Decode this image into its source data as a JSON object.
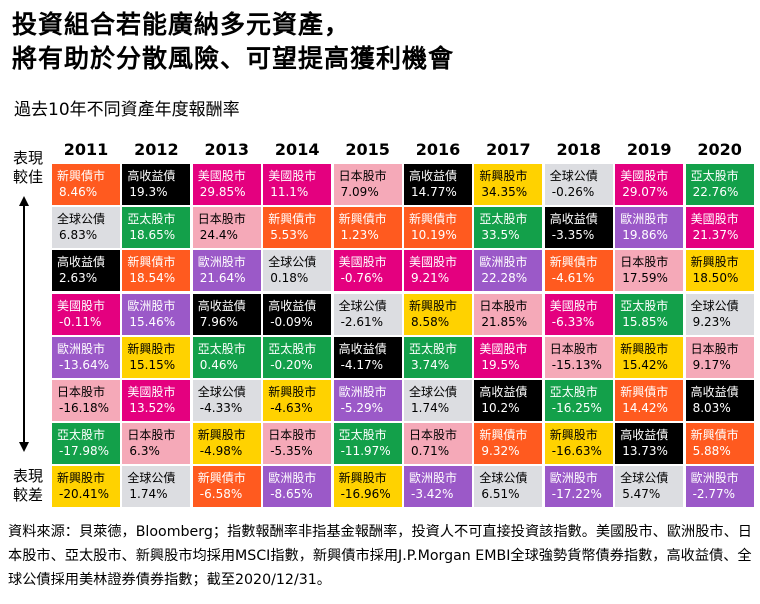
{
  "title_line1": "投資組合若能廣納多元資產，",
  "title_line2": "將有助於分散風險、可望提高獲利機會",
  "subtitle": "過去10年不同資產年度報酬率",
  "side_top_1": "表現",
  "side_top_2": "較佳",
  "side_bottom_1": "表現",
  "side_bottom_2": "較差",
  "source": "資料來源：貝萊德，Bloomberg；指數報酬率非指基金報酬率，投資人不可直接投資該指數。美國股市、歐洲股市、日本股市、亞太股市、新興股市均採用MSCI指數，新興債市採用J.P.Morgan EMBI全球強勢貨幣債券指數，高收益債、全球公債採用美林證券債券指數；截至2020/12/31。",
  "chart_data": {
    "type": "table",
    "title": "過去10年不同資產年度報酬率",
    "years": [
      "2011",
      "2012",
      "2013",
      "2014",
      "2015",
      "2016",
      "2017",
      "2018",
      "2019",
      "2020"
    ],
    "asset_colors": {
      "新興債市": {
        "bg": "#ff5a1f",
        "fg": "#ffffff"
      },
      "高收益債": {
        "bg": "#000000",
        "fg": "#ffffff"
      },
      "美國股市": {
        "bg": "#e4007f",
        "fg": "#ffffff"
      },
      "日本股市": {
        "bg": "#f5a9b8",
        "fg": "#000000"
      },
      "新興股市": {
        "bg": "#ffd200",
        "fg": "#000000"
      },
      "全球公債": {
        "bg": "#dcdde1",
        "fg": "#000000"
      },
      "亞太股市": {
        "bg": "#13a04a",
        "fg": "#ffffff"
      },
      "歐洲股市": {
        "bg": "#9b59c8",
        "fg": "#ffffff"
      }
    },
    "columns": [
      [
        [
          "新興債市",
          "8.46%"
        ],
        [
          "全球公債",
          "6.83%"
        ],
        [
          "高收益債",
          "2.63%"
        ],
        [
          "美國股市",
          "-0.11%"
        ],
        [
          "歐洲股市",
          "-13.64%"
        ],
        [
          "日本股市",
          "-16.18%"
        ],
        [
          "亞太股市",
          "-17.98%"
        ],
        [
          "新興股市",
          "-20.41%"
        ]
      ],
      [
        [
          "高收益債",
          "19.3%"
        ],
        [
          "亞太股市",
          "18.65%"
        ],
        [
          "新興債市",
          "18.54%"
        ],
        [
          "歐洲股市",
          "15.46%"
        ],
        [
          "新興股市",
          "15.15%"
        ],
        [
          "美國股市",
          "13.52%"
        ],
        [
          "日本股市",
          "6.3%"
        ],
        [
          "全球公債",
          "1.74%"
        ]
      ],
      [
        [
          "美國股市",
          "29.85%"
        ],
        [
          "日本股市",
          "24.4%"
        ],
        [
          "歐洲股市",
          "21.64%"
        ],
        [
          "高收益債",
          "7.96%"
        ],
        [
          "亞太股市",
          "0.46%"
        ],
        [
          "全球公債",
          "-4.33%"
        ],
        [
          "新興股市",
          "-4.98%"
        ],
        [
          "新興債市",
          "-6.58%"
        ]
      ],
      [
        [
          "美國股市",
          "11.1%"
        ],
        [
          "新興債市",
          "5.53%"
        ],
        [
          "全球公債",
          "0.18%"
        ],
        [
          "高收益債",
          "-0.09%"
        ],
        [
          "亞太股市",
          "-0.20%"
        ],
        [
          "新興股市",
          "-4.63%"
        ],
        [
          "日本股市",
          "-5.35%"
        ],
        [
          "歐洲股市",
          "-8.65%"
        ]
      ],
      [
        [
          "日本股市",
          "7.09%"
        ],
        [
          "新興債市",
          "1.23%"
        ],
        [
          "美國股市",
          "-0.76%"
        ],
        [
          "全球公債",
          "-2.61%"
        ],
        [
          "高收益債",
          "-4.17%"
        ],
        [
          "歐洲股市",
          "-5.29%"
        ],
        [
          "亞太股市",
          "-11.97%"
        ],
        [
          "新興股市",
          "-16.96%"
        ]
      ],
      [
        [
          "高收益債",
          "14.77%"
        ],
        [
          "新興債市",
          "10.19%"
        ],
        [
          "美國股市",
          "9.21%"
        ],
        [
          "新興股市",
          "8.58%"
        ],
        [
          "亞太股市",
          "3.74%"
        ],
        [
          "全球公債",
          "1.74%"
        ],
        [
          "日本股市",
          "0.71%"
        ],
        [
          "歐洲股市",
          "-3.42%"
        ]
      ],
      [
        [
          "新興股市",
          "34.35%"
        ],
        [
          "亞太股市",
          "33.5%"
        ],
        [
          "歐洲股市",
          "22.28%"
        ],
        [
          "日本股市",
          "21.85%"
        ],
        [
          "美國股市",
          "19.5%"
        ],
        [
          "高收益債",
          "10.2%"
        ],
        [
          "新興債市",
          "9.32%"
        ],
        [
          "全球公債",
          "6.51%"
        ]
      ],
      [
        [
          "全球公債",
          "-0.26%"
        ],
        [
          "高收益債",
          "-3.35%"
        ],
        [
          "新興債市",
          "-4.61%"
        ],
        [
          "美國股市",
          "-6.33%"
        ],
        [
          "日本股市",
          "-15.13%"
        ],
        [
          "亞太股市",
          "-16.25%"
        ],
        [
          "新興股市",
          "-16.63%"
        ],
        [
          "歐洲股市",
          "-17.22%"
        ]
      ],
      [
        [
          "美國股市",
          "29.07%"
        ],
        [
          "歐洲股市",
          "19.86%"
        ],
        [
          "日本股市",
          "17.59%"
        ],
        [
          "亞太股市",
          "15.85%"
        ],
        [
          "新興股市",
          "15.42%"
        ],
        [
          "新興債市",
          "14.42%"
        ],
        [
          "高收益債",
          "13.73%"
        ],
        [
          "全球公債",
          "5.47%"
        ]
      ],
      [
        [
          "亞太股市",
          "22.76%"
        ],
        [
          "美國股市",
          "21.37%"
        ],
        [
          "新興股市",
          "18.50%"
        ],
        [
          "全球公債",
          "9.23%"
        ],
        [
          "日本股市",
          "9.17%"
        ],
        [
          "高收益債",
          "8.03%"
        ],
        [
          "新興債市",
          "5.88%"
        ],
        [
          "歐洲股市",
          "-2.77%"
        ]
      ]
    ]
  }
}
